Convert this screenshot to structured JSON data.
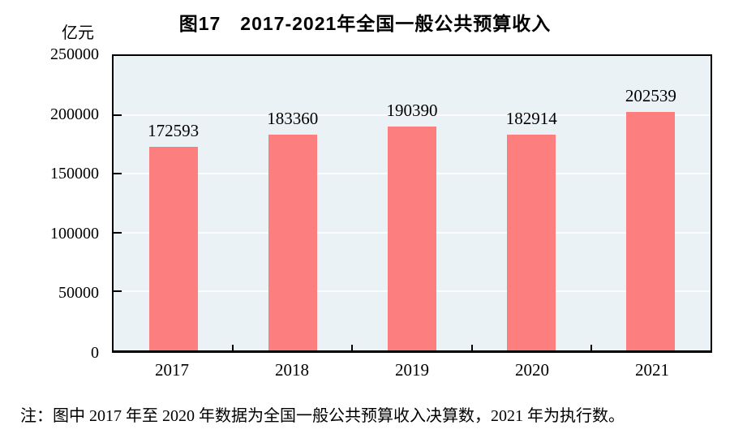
{
  "page": {
    "background": "#ffffff",
    "text_color": "#000000"
  },
  "title": "图17　2017-2021年全国一般公共预算收入",
  "unit_label": "亿元",
  "note": "注：图中 2017 年至 2020 年数据为全国一般公共预算收入决算数，2021 年为执行数。",
  "chart_data": {
    "type": "bar",
    "title": "图17　2017-2021年全国一般公共预算收入",
    "categories": [
      "2017",
      "2018",
      "2019",
      "2020",
      "2021"
    ],
    "values": [
      172593,
      183360,
      190390,
      182914,
      202539
    ],
    "xlabel": "",
    "ylabel": "亿元",
    "ylim": [
      0,
      250000
    ],
    "yticks": [
      0,
      50000,
      100000,
      150000,
      200000,
      250000
    ],
    "grid": true,
    "legend_position": "none",
    "bar_color": "#fc7e7e",
    "plot_bg": "#ebf2f5",
    "grid_color": "#fafcfd",
    "axis_color": "#000000"
  }
}
